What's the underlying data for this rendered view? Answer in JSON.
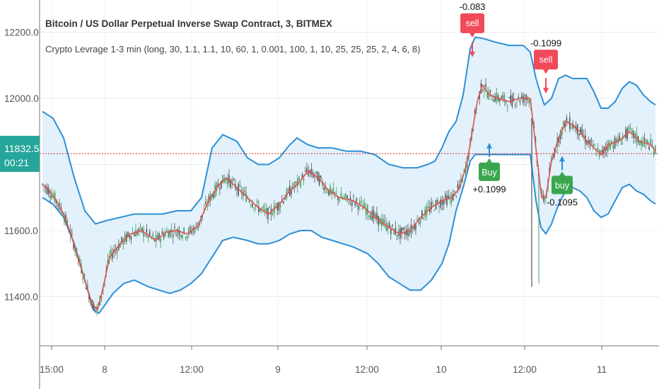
{
  "chart_data": {
    "type": "line",
    "title": "Bitcoin / US Dollar Perpetual Inverse Swap Contract, 3, BITMEX",
    "indicator": "Crypto Levrage 1-3 min (long, 30, 1.1, 1.1, 10, 60, 1, 0.001, 100, 1, 10, 25, 25, 25, 2, 4, 6, 8)",
    "ylim": [
      11300,
      12260
    ],
    "y_ticks": [
      "12200.0",
      "12000.0",
      "11600.0",
      "11400.0"
    ],
    "x_ticks": [
      "15:00",
      "8",
      "12:00",
      "9",
      "12:00",
      "10",
      "12:00",
      "11"
    ],
    "price_label": "11832.5",
    "countdown": "00:21",
    "last_price": 11832.5,
    "colors": {
      "price": "#e05050",
      "band": "#2e8fd6",
      "band_fill": "#ddeefa",
      "candle_up": "#4a9a5a",
      "candle_down": "#555555",
      "last_line": "#d93030",
      "sell": "#f04a58",
      "buy": "#3aa64e",
      "price_label_bg": "#26a69a"
    },
    "series": [
      {
        "name": "price",
        "points": [
          [
            0,
            11740
          ],
          [
            10,
            11720
          ],
          [
            20,
            11690
          ],
          [
            30,
            11650
          ],
          [
            40,
            11590
          ],
          [
            50,
            11520
          ],
          [
            60,
            11450
          ],
          [
            70,
            11380
          ],
          [
            78,
            11360
          ],
          [
            85,
            11420
          ],
          [
            95,
            11520
          ],
          [
            110,
            11560
          ],
          [
            125,
            11590
          ],
          [
            140,
            11600
          ],
          [
            160,
            11570
          ],
          [
            175,
            11595
          ],
          [
            190,
            11600
          ],
          [
            205,
            11590
          ],
          [
            220,
            11615
          ],
          [
            235,
            11690
          ],
          [
            250,
            11740
          ],
          [
            260,
            11760
          ],
          [
            275,
            11730
          ],
          [
            290,
            11700
          ],
          [
            305,
            11670
          ],
          [
            320,
            11650
          ],
          [
            335,
            11680
          ],
          [
            350,
            11720
          ],
          [
            365,
            11750
          ],
          [
            375,
            11780
          ],
          [
            390,
            11760
          ],
          [
            405,
            11720
          ],
          [
            420,
            11700
          ],
          [
            440,
            11690
          ],
          [
            455,
            11670
          ],
          [
            470,
            11640
          ],
          [
            490,
            11610
          ],
          [
            505,
            11590
          ],
          [
            520,
            11600
          ],
          [
            535,
            11640
          ],
          [
            550,
            11670
          ],
          [
            565,
            11690
          ],
          [
            580,
            11700
          ],
          [
            590,
            11730
          ],
          [
            600,
            11800
          ],
          [
            608,
            11900
          ],
          [
            615,
            11990
          ],
          [
            622,
            12040
          ],
          [
            632,
            12010
          ],
          [
            645,
            12000
          ],
          [
            660,
            11990
          ],
          [
            675,
            12000
          ],
          [
            690,
            12000
          ],
          [
            700,
            11810
          ],
          [
            706,
            11700
          ],
          [
            712,
            11700
          ],
          [
            720,
            11810
          ],
          [
            730,
            11880
          ],
          [
            740,
            11930
          ],
          [
            750,
            11920
          ],
          [
            760,
            11900
          ],
          [
            770,
            11870
          ],
          [
            780,
            11850
          ],
          [
            790,
            11830
          ],
          [
            800,
            11860
          ],
          [
            815,
            11870
          ],
          [
            830,
            11900
          ],
          [
            845,
            11870
          ],
          [
            860,
            11860
          ],
          [
            867,
            11840
          ]
        ]
      },
      {
        "name": "upper",
        "points": [
          [
            0,
            11960
          ],
          [
            15,
            11940
          ],
          [
            30,
            11880
          ],
          [
            45,
            11760
          ],
          [
            60,
            11660
          ],
          [
            75,
            11620
          ],
          [
            90,
            11630
          ],
          [
            110,
            11640
          ],
          [
            130,
            11650
          ],
          [
            150,
            11650
          ],
          [
            170,
            11650
          ],
          [
            190,
            11660
          ],
          [
            210,
            11660
          ],
          [
            225,
            11700
          ],
          [
            240,
            11850
          ],
          [
            255,
            11890
          ],
          [
            275,
            11870
          ],
          [
            290,
            11820
          ],
          [
            305,
            11800
          ],
          [
            320,
            11800
          ],
          [
            335,
            11820
          ],
          [
            350,
            11860
          ],
          [
            360,
            11880
          ],
          [
            375,
            11860
          ],
          [
            390,
            11850
          ],
          [
            410,
            11850
          ],
          [
            430,
            11840
          ],
          [
            450,
            11840
          ],
          [
            470,
            11830
          ],
          [
            490,
            11800
          ],
          [
            510,
            11790
          ],
          [
            530,
            11790
          ],
          [
            545,
            11800
          ],
          [
            555,
            11810
          ],
          [
            565,
            11850
          ],
          [
            575,
            11900
          ],
          [
            585,
            11930
          ],
          [
            595,
            12010
          ],
          [
            605,
            12150
          ],
          [
            612,
            12185
          ],
          [
            625,
            12180
          ],
          [
            640,
            12170
          ],
          [
            660,
            12160
          ],
          [
            680,
            12160
          ],
          [
            690,
            12140
          ],
          [
            698,
            12060
          ],
          [
            705,
            12010
          ],
          [
            710,
            11980
          ],
          [
            720,
            12000
          ],
          [
            730,
            12060
          ],
          [
            740,
            12070
          ],
          [
            750,
            12060
          ],
          [
            760,
            12060
          ],
          [
            770,
            12060
          ],
          [
            780,
            12020
          ],
          [
            790,
            11970
          ],
          [
            800,
            11970
          ],
          [
            810,
            11990
          ],
          [
            820,
            12030
          ],
          [
            830,
            12050
          ],
          [
            840,
            12040
          ],
          [
            850,
            12010
          ],
          [
            860,
            11990
          ],
          [
            867,
            11980
          ]
        ]
      },
      {
        "name": "lower",
        "points": [
          [
            0,
            11700
          ],
          [
            15,
            11680
          ],
          [
            30,
            11640
          ],
          [
            45,
            11560
          ],
          [
            60,
            11450
          ],
          [
            72,
            11360
          ],
          [
            80,
            11350
          ],
          [
            90,
            11380
          ],
          [
            100,
            11410
          ],
          [
            115,
            11440
          ],
          [
            130,
            11450
          ],
          [
            150,
            11430
          ],
          [
            165,
            11420
          ],
          [
            180,
            11410
          ],
          [
            195,
            11420
          ],
          [
            210,
            11440
          ],
          [
            225,
            11470
          ],
          [
            240,
            11520
          ],
          [
            255,
            11570
          ],
          [
            270,
            11580
          ],
          [
            290,
            11570
          ],
          [
            305,
            11560
          ],
          [
            320,
            11560
          ],
          [
            335,
            11570
          ],
          [
            350,
            11590
          ],
          [
            365,
            11600
          ],
          [
            380,
            11600
          ],
          [
            395,
            11580
          ],
          [
            410,
            11570
          ],
          [
            425,
            11560
          ],
          [
            440,
            11550
          ],
          [
            460,
            11530
          ],
          [
            475,
            11500
          ],
          [
            490,
            11460
          ],
          [
            505,
            11440
          ],
          [
            520,
            11420
          ],
          [
            535,
            11420
          ],
          [
            550,
            11450
          ],
          [
            565,
            11500
          ],
          [
            575,
            11560
          ],
          [
            585,
            11660
          ],
          [
            595,
            11730
          ],
          [
            605,
            11810
          ],
          [
            612,
            11830
          ],
          [
            625,
            11830
          ],
          [
            640,
            11830
          ],
          [
            660,
            11830
          ],
          [
            680,
            11830
          ],
          [
            690,
            11830
          ],
          [
            698,
            11690
          ],
          [
            705,
            11610
          ],
          [
            712,
            11590
          ],
          [
            720,
            11620
          ],
          [
            730,
            11680
          ],
          [
            740,
            11720
          ],
          [
            750,
            11730
          ],
          [
            760,
            11720
          ],
          [
            770,
            11700
          ],
          [
            780,
            11660
          ],
          [
            790,
            11640
          ],
          [
            800,
            11650
          ],
          [
            810,
            11690
          ],
          [
            820,
            11730
          ],
          [
            830,
            11740
          ],
          [
            840,
            11720
          ],
          [
            850,
            11710
          ],
          [
            860,
            11690
          ],
          [
            867,
            11680
          ]
        ]
      }
    ],
    "signals": [
      {
        "type": "sell",
        "label": "sell",
        "value": "-0.083",
        "x": 608,
        "y": 12150
      },
      {
        "type": "buy",
        "label": "Buy",
        "value": "+0.1099",
        "x": 632,
        "y": 11810
      },
      {
        "type": "sell",
        "label": "sell",
        "value": "-0.1099",
        "x": 712,
        "y": 12040
      },
      {
        "type": "buy",
        "label": "buy",
        "value": "-0.1095",
        "x": 735,
        "y": 11770
      }
    ]
  }
}
